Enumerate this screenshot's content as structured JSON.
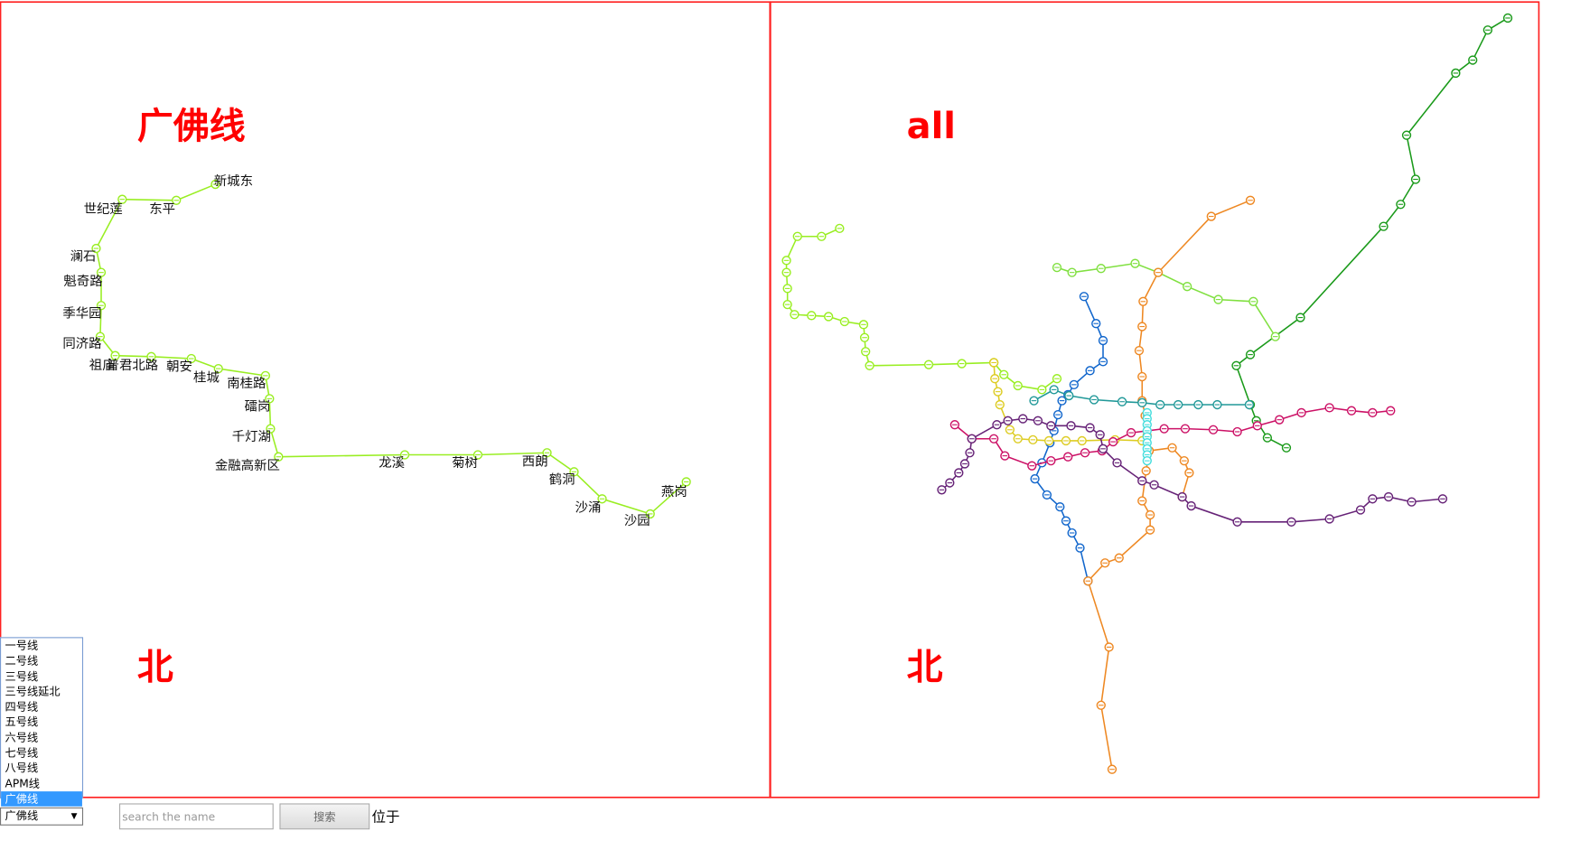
{
  "left_panel": {
    "title": "广佛线",
    "north": "北",
    "stations": [
      "新城东",
      "东平",
      "世纪莲",
      "澜石",
      "魁奇路",
      "季华园",
      "同济路",
      "祖庙",
      "普君北路",
      "朝安",
      "桂城",
      "南桂路",
      "礌岗",
      "千灯湖",
      "金融高新区",
      "龙溪",
      "菊树",
      "西朗",
      "鹤洞",
      "沙涌",
      "沙园",
      "燕岗"
    ]
  },
  "right_panel": {
    "title": "all",
    "north": "北"
  },
  "controls": {
    "line_list": [
      "一号线",
      "二号线",
      "三号线",
      "三号线延北",
      "四号线",
      "五号线",
      "六号线",
      "七号线",
      "八号线",
      "APM线",
      "广佛线"
    ],
    "selected": "广佛线",
    "search_placeholder": "search the name",
    "search_button": "搜索",
    "location_label": "位于"
  }
}
